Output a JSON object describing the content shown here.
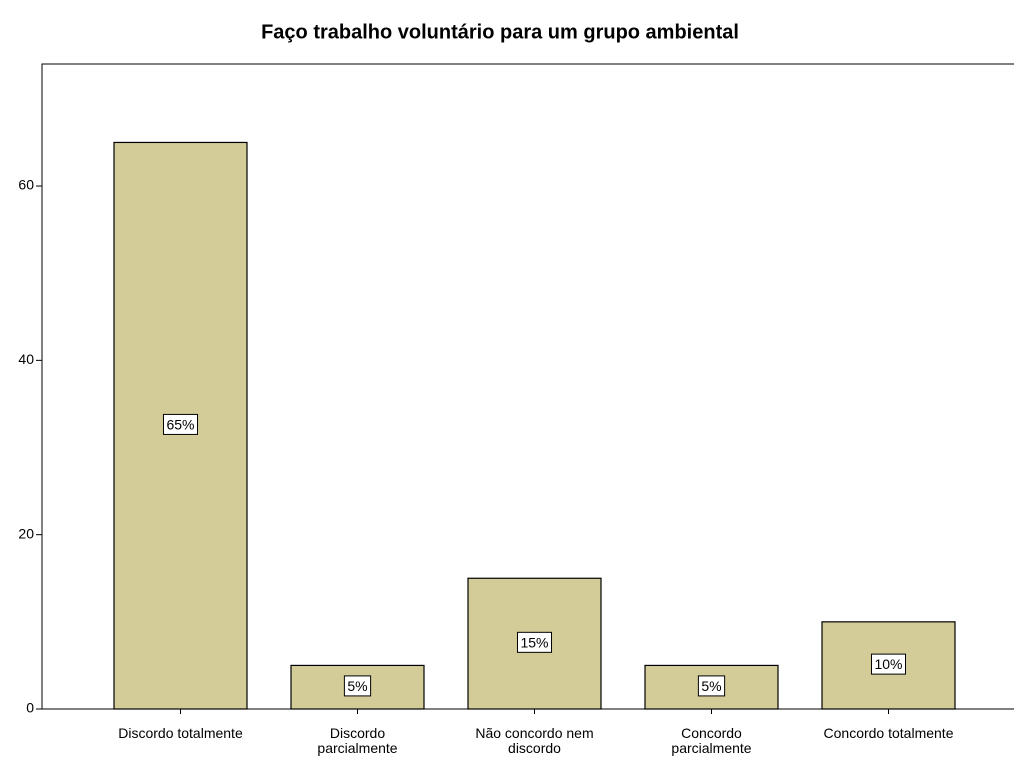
{
  "chart_data": {
    "type": "bar",
    "title": "Faço trabalho voluntário para um grupo ambiental",
    "categories": [
      "Discordo totalmente",
      "Discordo\nparcialmente",
      "Não concordo nem\ndiscordo",
      "Concordo\nparcialmente",
      "Concordo totalmente"
    ],
    "values": [
      65,
      5,
      15,
      5,
      10
    ],
    "value_labels": [
      "65%",
      "5%",
      "15%",
      "5%",
      "10%"
    ],
    "color": "#d3cc98",
    "ylim": [
      0,
      74
    ],
    "yticks": [
      0,
      20,
      40,
      60
    ]
  }
}
